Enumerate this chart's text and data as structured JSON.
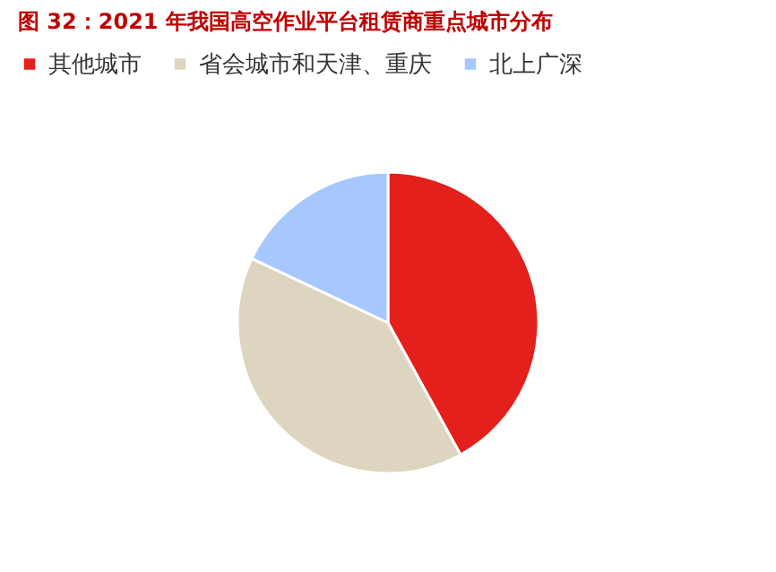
{
  "chart_data": {
    "type": "pie",
    "title": "图 32：2021 年我国高空作业平台租赁商重点城市分布",
    "categories": [
      "其他城市",
      "省会城市和天津、重庆",
      "北上广深"
    ],
    "values": [
      42,
      40,
      18
    ],
    "colors": [
      "#e3201b",
      "#ddd5bf",
      "#a6c8ff"
    ],
    "legend": "top"
  }
}
